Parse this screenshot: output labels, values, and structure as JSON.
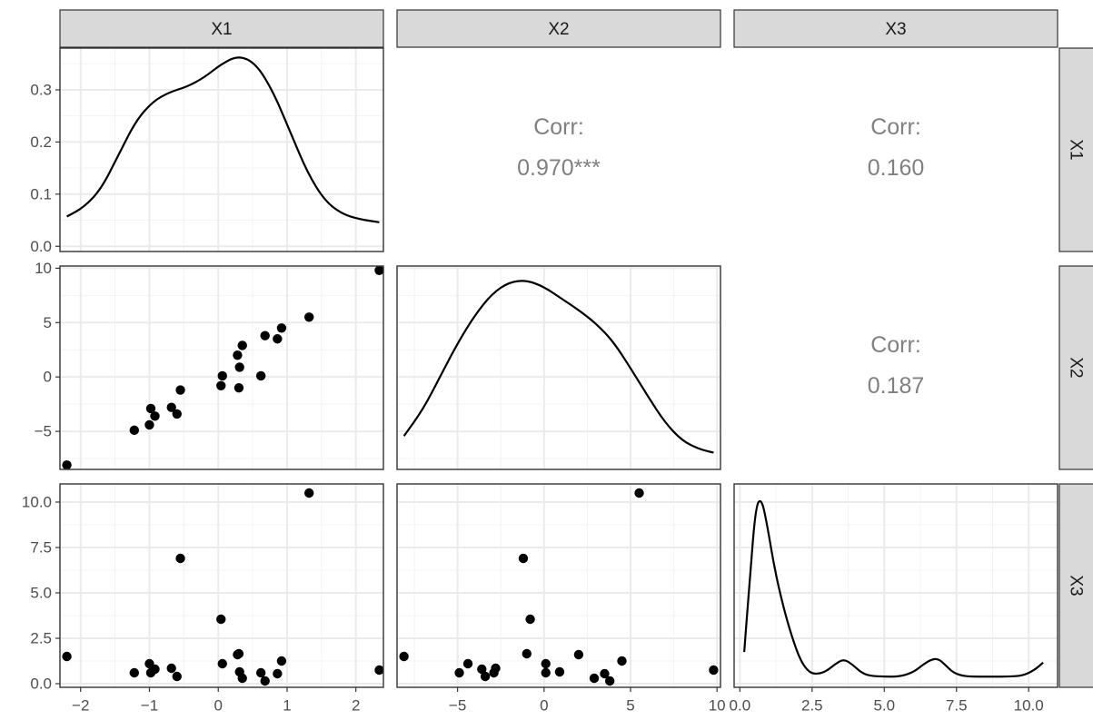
{
  "chart_data": {
    "type": "scatter",
    "variables": [
      "X1",
      "X2",
      "X3"
    ],
    "strip_labels": {
      "top": [
        "X1",
        "X2",
        "X3"
      ],
      "right": [
        "X1",
        "X2",
        "X3"
      ]
    },
    "axes": {
      "X1": {
        "lim": [
          -2.3,
          2.4
        ],
        "ticks": [
          -2,
          -1,
          0,
          1,
          2
        ],
        "tick_labels": [
          "−2",
          "−1",
          "0",
          "1",
          "2"
        ]
      },
      "X2": {
        "lim": [
          -8.5,
          10.2
        ],
        "ticks": [
          -5,
          0,
          5,
          10
        ],
        "tick_labels": [
          "−5",
          "0",
          "5",
          "10"
        ]
      },
      "X3": {
        "lim": [
          -0.2,
          11.0
        ],
        "ticks": [
          0,
          2.5,
          5,
          7.5,
          10
        ],
        "tick_labels": [
          "0.0",
          "2.5",
          "5.0",
          "7.5",
          "10.0"
        ]
      }
    },
    "density_axis": {
      "lim": [
        -0.01,
        0.38
      ],
      "ticks": [
        0,
        0.1,
        0.2,
        0.3
      ],
      "tick_labels": [
        "0.0",
        "0.1",
        "0.2",
        "0.3"
      ]
    },
    "points": {
      "X1": [
        -2.2,
        -1.22,
        -1.0,
        -0.98,
        -0.92,
        -0.68,
        -0.6,
        -0.55,
        0.04,
        0.06,
        0.28,
        0.3,
        0.31,
        0.35,
        0.62,
        0.68,
        0.86,
        0.92,
        1.32,
        2.34
      ],
      "X2": [
        -8.1,
        -4.9,
        -4.4,
        -2.9,
        -3.6,
        -2.8,
        -3.4,
        -1.2,
        -0.8,
        0.1,
        2.0,
        -1.0,
        0.9,
        2.9,
        0.1,
        3.8,
        3.5,
        4.5,
        5.5,
        9.8
      ],
      "X3": [
        1.5,
        0.6,
        1.1,
        0.6,
        0.8,
        0.85,
        0.4,
        6.9,
        3.55,
        1.1,
        1.6,
        1.65,
        0.65,
        0.3,
        0.6,
        0.15,
        0.55,
        1.25,
        10.5,
        0.75
      ]
    },
    "correlations": [
      {
        "row": "X1",
        "col": "X2",
        "label": "Corr:",
        "value": "0.970***"
      },
      {
        "row": "X1",
        "col": "X3",
        "label": "Corr:",
        "value": "0.160"
      },
      {
        "row": "X2",
        "col": "X3",
        "label": "Corr:",
        "value": "0.187"
      }
    ],
    "densities": {
      "X1": {
        "x": [
          -2.2,
          -1.95,
          -1.7,
          -1.45,
          -1.2,
          -0.95,
          -0.7,
          -0.45,
          -0.2,
          0.05,
          0.3,
          0.55,
          0.8,
          1.05,
          1.3,
          1.55,
          1.8,
          2.05,
          2.34
        ],
        "y": [
          0.057,
          0.075,
          0.11,
          0.175,
          0.24,
          0.278,
          0.296,
          0.306,
          0.324,
          0.35,
          0.366,
          0.35,
          0.296,
          0.218,
          0.14,
          0.087,
          0.062,
          0.052,
          0.046
        ]
      },
      "X2": {
        "x": [
          -8.1,
          -7.0,
          -6.0,
          -5.0,
          -4.0,
          -3.0,
          -2.0,
          -1.0,
          0.0,
          1.0,
          2.0,
          3.0,
          4.0,
          5.0,
          6.0,
          7.0,
          8.0,
          9.0,
          9.8
        ],
        "y": [
          0.014,
          0.03,
          0.05,
          0.07,
          0.087,
          0.1,
          0.107,
          0.108,
          0.104,
          0.097,
          0.09,
          0.082,
          0.071,
          0.055,
          0.038,
          0.022,
          0.011,
          0.006,
          0.004
        ]
      },
      "X3": {
        "x": [
          0.15,
          0.35,
          0.55,
          0.75,
          0.95,
          1.2,
          1.5,
          1.8,
          2.1,
          2.4,
          2.7,
          3.0,
          3.3,
          3.6,
          3.9,
          4.2,
          4.5,
          5.0,
          5.5,
          6.0,
          6.4,
          6.7,
          6.9,
          7.1,
          7.4,
          7.8,
          8.3,
          8.8,
          9.3,
          9.8,
          10.2,
          10.5
        ],
        "y": [
          0.1,
          0.4,
          0.68,
          0.71,
          0.6,
          0.43,
          0.28,
          0.16,
          0.065,
          0.018,
          0.012,
          0.024,
          0.052,
          0.072,
          0.05,
          0.018,
          0.005,
          0.002,
          0.002,
          0.018,
          0.055,
          0.073,
          0.07,
          0.05,
          0.016,
          0.003,
          0.002,
          0.002,
          0.002,
          0.006,
          0.028,
          0.058
        ]
      }
    },
    "grid": true
  }
}
